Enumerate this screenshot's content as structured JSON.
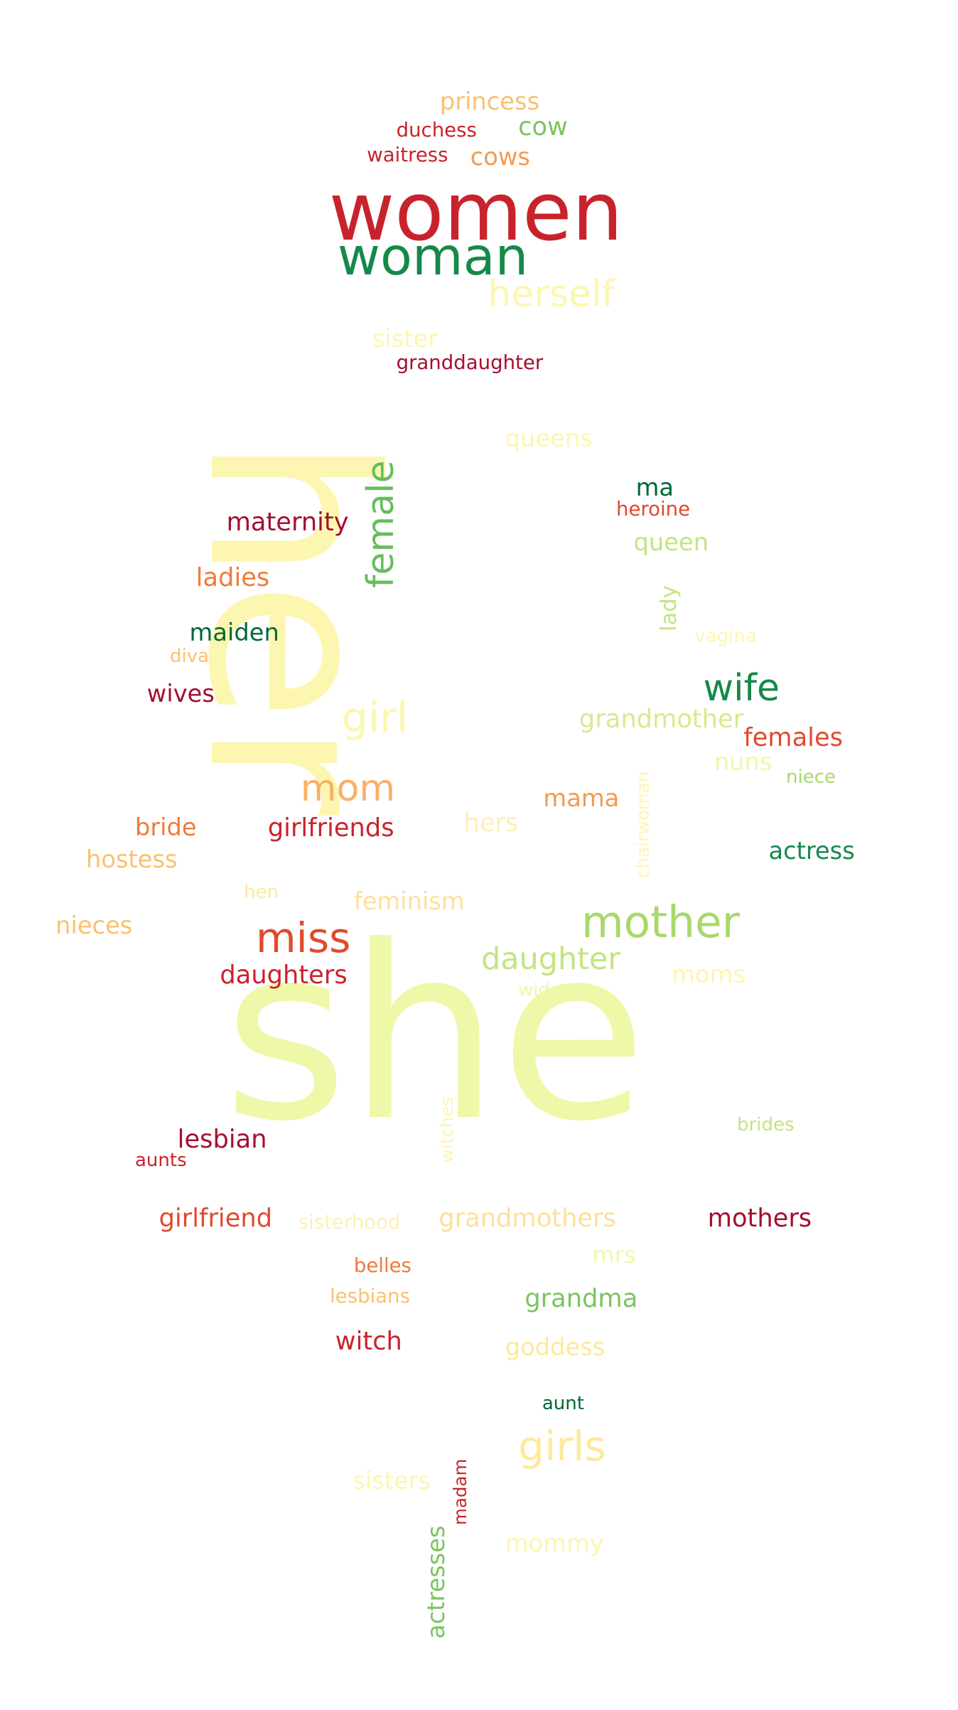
{
  "colors": {
    "red": "#c8232c",
    "dark_red": "#a50f2e",
    "red_orange": "#e04a2e",
    "orange": "#f07a3a",
    "light_orange": "#f9b066",
    "pale_yellow": "#fde99b",
    "very_pale_yellow": "#fdf6b0",
    "light_yellow_green": "#eef8a8",
    "lime": "#d3ec8e",
    "light_green": "#a9d86b",
    "green": "#65bd5c",
    "dark_green": "#15894a",
    "deep_green": "#006837"
  },
  "words": [
    {
      "id": "w-her",
      "text": "her",
      "color": "#fdf6b0"
    },
    {
      "id": "w-she",
      "text": "she",
      "color": "#eef8a8"
    },
    {
      "id": "w-women",
      "text": "women",
      "color": "#c8232c"
    },
    {
      "id": "w-woman",
      "text": "woman",
      "color": "#15894a"
    },
    {
      "id": "w-herself",
      "text": "herself",
      "color": "#fdf6b0"
    },
    {
      "id": "w-princess",
      "text": "princess",
      "color": "#f9c170"
    },
    {
      "id": "w-duchess",
      "text": "duchess",
      "color": "#c8232c"
    },
    {
      "id": "w-cow",
      "text": "cow",
      "color": "#7cc460"
    },
    {
      "id": "w-waitress",
      "text": "waitress",
      "color": "#c8232c"
    },
    {
      "id": "w-cows",
      "text": "cows",
      "color": "#f29a50"
    },
    {
      "id": "w-sister",
      "text": "sister",
      "color": "#fdf6b0"
    },
    {
      "id": "w-granddaughter",
      "text": "granddaughter",
      "color": "#a50f2e"
    },
    {
      "id": "w-queens",
      "text": "queens",
      "color": "#fdf6b0"
    },
    {
      "id": "w-ma",
      "text": "ma",
      "color": "#006837"
    },
    {
      "id": "w-heroine",
      "text": "heroine",
      "color": "#e04a2e"
    },
    {
      "id": "w-maternity",
      "text": "maternity",
      "color": "#a50f2e"
    },
    {
      "id": "w-female",
      "text": "female",
      "color": "#65bd5c"
    },
    {
      "id": "w-queen",
      "text": "queen",
      "color": "#c3e480"
    },
    {
      "id": "w-ladies",
      "text": "ladies",
      "color": "#f07a3a"
    },
    {
      "id": "w-lady",
      "text": "lady",
      "color": "#c3e480"
    },
    {
      "id": "w-maiden",
      "text": "maiden",
      "color": "#006837"
    },
    {
      "id": "w-vagina",
      "text": "vagina",
      "color": "#fdf6b0"
    },
    {
      "id": "w-diva",
      "text": "diva",
      "color": "#f9c170"
    },
    {
      "id": "w-wives",
      "text": "wives",
      "color": "#a50f2e"
    },
    {
      "id": "w-wife",
      "text": "wife",
      "color": "#15894a"
    },
    {
      "id": "w-girl",
      "text": "girl",
      "color": "#fdf6b0"
    },
    {
      "id": "w-grandmother",
      "text": "grandmother",
      "color": "#d3ec8e"
    },
    {
      "id": "w-females",
      "text": "females",
      "color": "#e04a2e"
    },
    {
      "id": "w-nuns",
      "text": "nuns",
      "color": "#eef8a8"
    },
    {
      "id": "w-niece",
      "text": "niece",
      "color": "#a9d86b"
    },
    {
      "id": "w-mom",
      "text": "mom",
      "color": "#f9b066"
    },
    {
      "id": "w-mama",
      "text": "mama",
      "color": "#f29a50"
    },
    {
      "id": "w-chairwoman",
      "text": "chairwoman",
      "color": "#fdf6b0"
    },
    {
      "id": "w-bride",
      "text": "bride",
      "color": "#f07a3a"
    },
    {
      "id": "w-girlfriends",
      "text": "girlfriends",
      "color": "#c8232c"
    },
    {
      "id": "w-hers",
      "text": "hers",
      "color": "#fdf0b8"
    },
    {
      "id": "w-actress",
      "text": "actress",
      "color": "#15894a"
    },
    {
      "id": "w-hostess",
      "text": "hostess",
      "color": "#f9c170"
    },
    {
      "id": "w-hen",
      "text": "hen",
      "color": "#fde99b"
    },
    {
      "id": "w-feminism",
      "text": "feminism",
      "color": "#fde09b"
    },
    {
      "id": "w-nieces",
      "text": "nieces",
      "color": "#f9c170"
    },
    {
      "id": "w-miss",
      "text": "miss",
      "color": "#e04a2e"
    },
    {
      "id": "w-mother",
      "text": "mother",
      "color": "#a9d86b"
    },
    {
      "id": "w-daughters",
      "text": "daughters",
      "color": "#c8232c"
    },
    {
      "id": "w-daughter",
      "text": "daughter",
      "color": "#c3e480"
    },
    {
      "id": "w-moms",
      "text": "moms",
      "color": "#fdf6b0"
    },
    {
      "id": "w-widow",
      "text": "widow",
      "color": "#eef8a8"
    },
    {
      "id": "w-witches",
      "text": "witches",
      "color": "#fdf6b0"
    },
    {
      "id": "w-brides",
      "text": "brides",
      "color": "#c3e480"
    },
    {
      "id": "w-lesbian",
      "text": "lesbian",
      "color": "#a50f2e"
    },
    {
      "id": "w-aunts",
      "text": "aunts",
      "color": "#c8232c"
    },
    {
      "id": "w-girlfriend",
      "text": "girlfriend",
      "color": "#e04a2e"
    },
    {
      "id": "w-sisterhood",
      "text": "sisterhood",
      "color": "#fdf0b8"
    },
    {
      "id": "w-grandmothers",
      "text": "grandmothers",
      "color": "#fde09b"
    },
    {
      "id": "w-mothers",
      "text": "mothers",
      "color": "#a50f2e"
    },
    {
      "id": "w-mrs",
      "text": "mrs",
      "color": "#eef8a8"
    },
    {
      "id": "w-belles",
      "text": "belles",
      "color": "#f07a3a"
    },
    {
      "id": "w-lesbians",
      "text": "lesbians",
      "color": "#f9c170"
    },
    {
      "id": "w-grandma",
      "text": "grandma",
      "color": "#7cc460"
    },
    {
      "id": "w-witch",
      "text": "witch",
      "color": "#c8232c"
    },
    {
      "id": "w-goddess",
      "text": "goddess",
      "color": "#fde99b"
    },
    {
      "id": "w-aunt",
      "text": "aunt",
      "color": "#006837"
    },
    {
      "id": "w-girls",
      "text": "girls",
      "color": "#fde99b"
    },
    {
      "id": "w-sisters",
      "text": "sisters",
      "color": "#fdf6b0"
    },
    {
      "id": "w-madam",
      "text": "madam",
      "color": "#c8232c"
    },
    {
      "id": "w-mommy",
      "text": "mommy",
      "color": "#fdf6b0"
    },
    {
      "id": "w-actresses",
      "text": "actresses",
      "color": "#7cc460"
    }
  ]
}
